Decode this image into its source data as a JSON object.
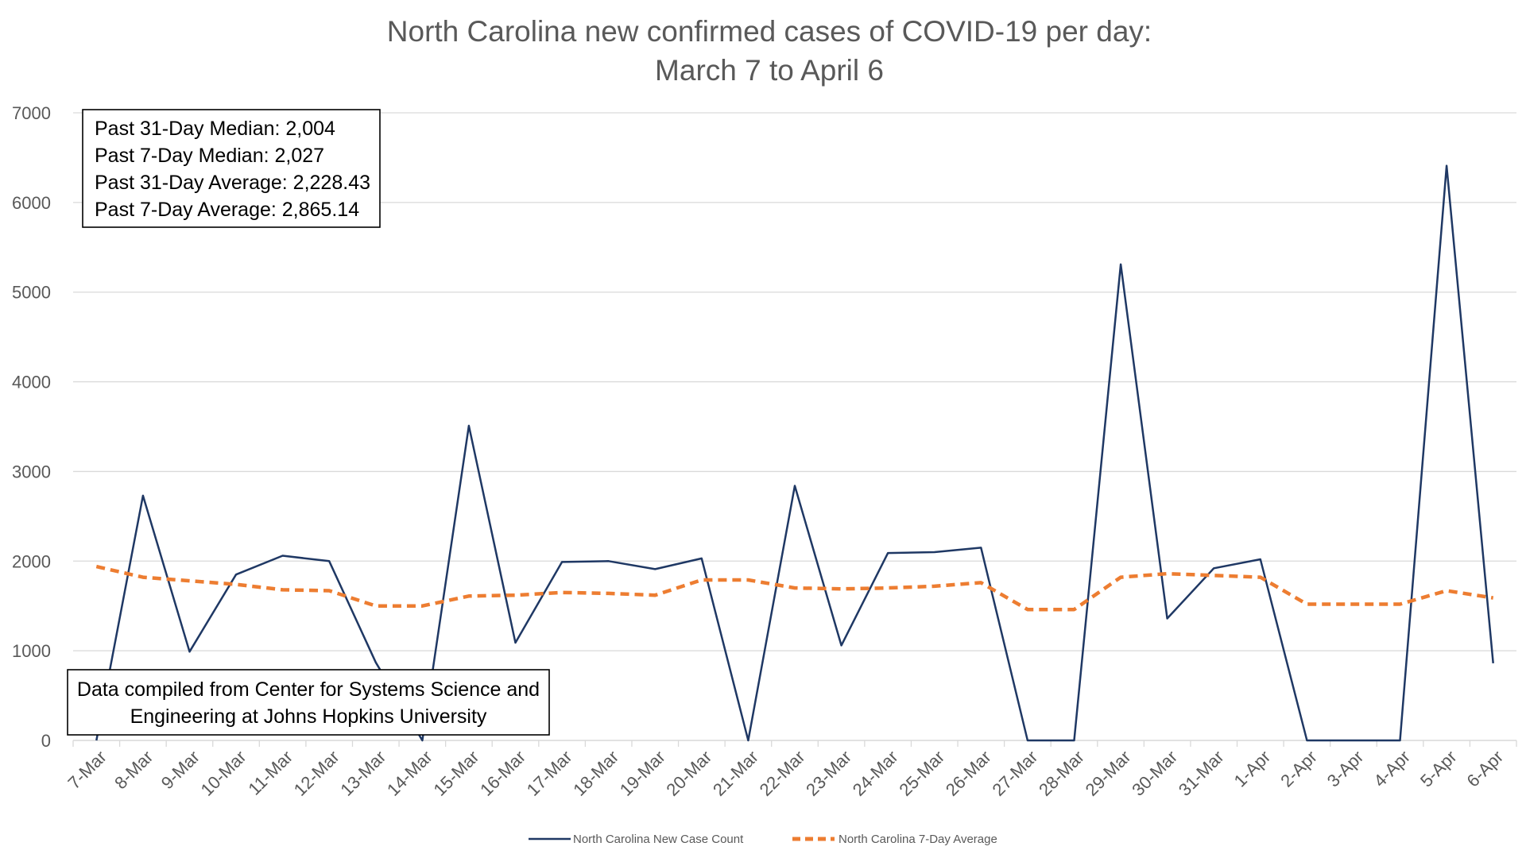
{
  "chart_data": {
    "type": "line",
    "title": "North Carolina new confirmed cases of COVID-19 per day:",
    "subtitle": "March 7 to April 6",
    "xlabel": "",
    "ylabel": "",
    "ylim": [
      0,
      7000
    ],
    "yticks": [
      0,
      1000,
      2000,
      3000,
      4000,
      5000,
      6000,
      7000
    ],
    "grid": true,
    "legend_position": "bottom",
    "categories": [
      "7-Mar",
      "8-Mar",
      "9-Mar",
      "10-Mar",
      "11-Mar",
      "12-Mar",
      "13-Mar",
      "14-Mar",
      "15-Mar",
      "16-Mar",
      "17-Mar",
      "18-Mar",
      "19-Mar",
      "20-Mar",
      "21-Mar",
      "22-Mar",
      "23-Mar",
      "24-Mar",
      "25-Mar",
      "26-Mar",
      "27-Mar",
      "28-Mar",
      "29-Mar",
      "30-Mar",
      "31-Mar",
      "1-Apr",
      "2-Apr",
      "3-Apr",
      "4-Apr",
      "5-Apr",
      "6-Apr"
    ],
    "series": [
      {
        "name": "North Carolina New Case Count",
        "color": "#1f3864",
        "dash": "solid",
        "values": [
          0,
          2730,
          990,
          1850,
          2060,
          2000,
          870,
          0,
          3510,
          1090,
          1990,
          2000,
          1910,
          2030,
          0,
          2840,
          1060,
          2090,
          2100,
          2150,
          0,
          0,
          5310,
          1360,
          1920,
          2020,
          0,
          0,
          0,
          6410,
          860
        ]
      },
      {
        "name": "North Carolina 7-Day Average",
        "color": "#ed7d31",
        "dash": "dashed",
        "values": [
          1940,
          1820,
          1780,
          1740,
          1680,
          1670,
          1500,
          1500,
          1610,
          1620,
          1650,
          1640,
          1620,
          1790,
          1790,
          1700,
          1690,
          1700,
          1720,
          1760,
          1460,
          1460,
          1820,
          1860,
          1840,
          1820,
          1520,
          1520,
          1520,
          1670,
          1590
        ]
      }
    ],
    "annotations": {
      "stats": [
        "Past 31-Day Median: 2,004",
        "Past 7-Day Median: 2,027",
        "Past 31-Day Average: 2,228.43",
        "Past 7-Day Average: 2,865.14"
      ],
      "source": [
        "Data compiled from Center for Systems Science and",
        "Engineering at Johns Hopkins University"
      ]
    }
  }
}
